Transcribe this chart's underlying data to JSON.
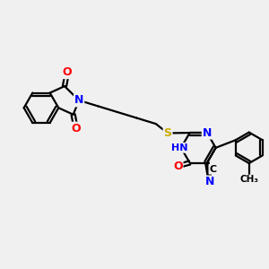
{
  "bg_color": "#f0f0f0",
  "bond_color": "#000000",
  "bond_width": 1.6,
  "atom_colors": {
    "O": "#ff0000",
    "N": "#0000ff",
    "S": "#ccaa00",
    "H": "#008888",
    "C": "#000000"
  },
  "font_size": 9,
  "dbo": 0.08
}
